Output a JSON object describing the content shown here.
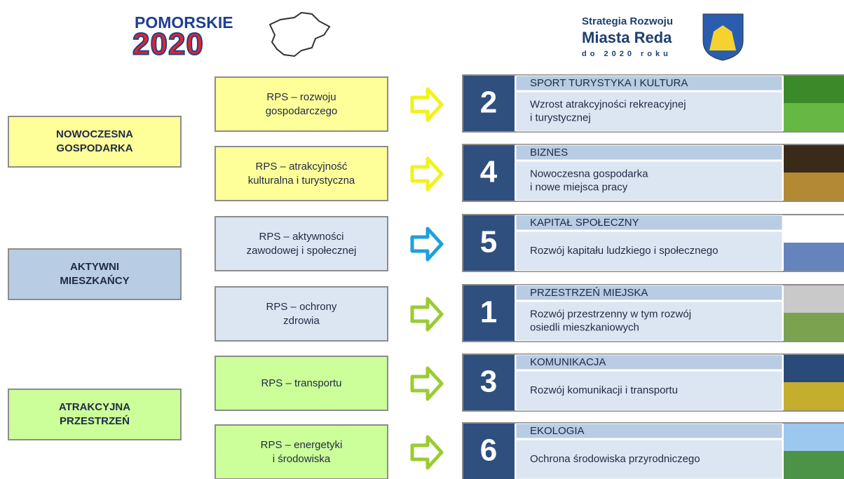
{
  "logos": {
    "pomorskie": {
      "name": "POMORSKIE",
      "year": "2020"
    },
    "strategy": {
      "line1": "Strategia Rozwoju",
      "line2": "Miasta Reda",
      "line3": "do 2020 roku"
    }
  },
  "groups": [
    {
      "label": [
        "NOWOCZESNA",
        "GOSPODARKA"
      ]
    },
    {
      "label": [
        "AKTYWNI",
        "MIESZKAŃCY"
      ]
    },
    {
      "label": [
        "ATRAKCYJNA",
        "PRZESTRZEŃ"
      ]
    }
  ],
  "programs": [
    {
      "label": [
        "RPS – rozwoju",
        "gospodarczego"
      ]
    },
    {
      "label": [
        "RPS – atrakcyjność",
        "kulturalna i turystyczna"
      ]
    },
    {
      "label": [
        "RPS – aktywności",
        "zawodowej i społecznej"
      ]
    },
    {
      "label": [
        "RPS – ochrony",
        "zdrowia"
      ]
    },
    {
      "label": [
        "RPS – transportu"
      ]
    },
    {
      "label": [
        "RPS – energetyki",
        "i środowiska"
      ]
    }
  ],
  "goals": [
    {
      "number": "2",
      "title": "SPORT TURYSTYKA I KULTURA",
      "description": [
        "Wzrost atrakcyjności rekreacyjnej",
        "i turystycznej"
      ]
    },
    {
      "number": "4",
      "title": "BIZNES",
      "description": [
        "Nowoczesna gospodarka",
        "i nowe miejsca pracy"
      ]
    },
    {
      "number": "5",
      "title": "KAPITAŁ SPOŁECZNY",
      "description": [
        "Rozwój kapitału ludzkiego  i społecznego"
      ]
    },
    {
      "number": "1",
      "title": "PRZESTRZEŃ MIEJSKA",
      "description": [
        "Rozwój przestrzenny w tym rozwój",
        "osiedli mieszkaniowych"
      ]
    },
    {
      "number": "3",
      "title": "KOMUNIKACJA",
      "description": [
        "Rozwój komunikacji i transportu"
      ]
    },
    {
      "number": "6",
      "title": "EKOLOGIA",
      "description": [
        "Ochrona środowiska przyrodniczego"
      ]
    }
  ]
}
